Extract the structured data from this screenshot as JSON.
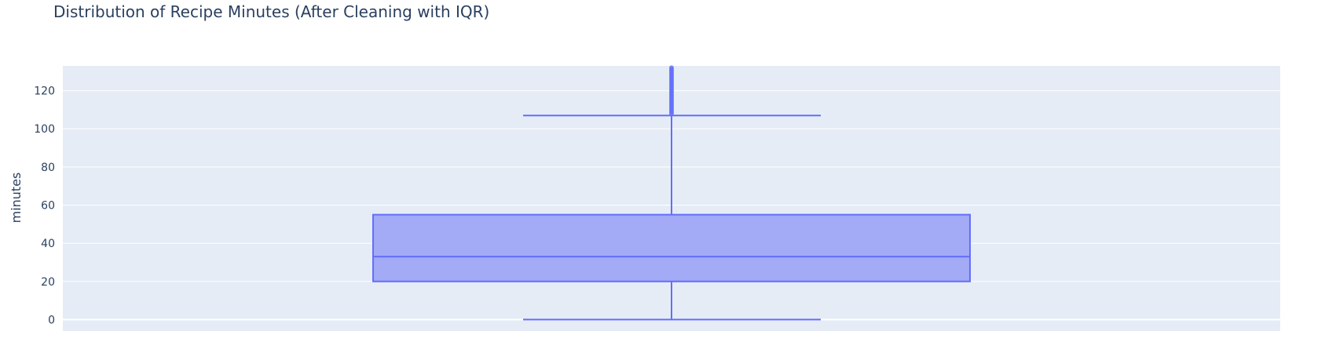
{
  "colors": {
    "plot_background": "#e5ecf6",
    "grid": "#ffffff",
    "text": "#2a3f5f",
    "box_line": "#636efa",
    "box_fill": "#a3aaf6"
  },
  "chart_data": {
    "type": "box",
    "title": "Distribution of Recipe Minutes (After Cleaning with IQR)",
    "xlabel": "",
    "ylabel": "minutes",
    "ylim": [
      -6,
      133
    ],
    "y_ticks": [
      0,
      20,
      40,
      60,
      80,
      100,
      120
    ],
    "grid": true,
    "legend": "none",
    "series": [
      {
        "lower_fence": 0,
        "q1": 20,
        "median": 33,
        "q3": 55,
        "upper_fence": 107,
        "outliers": [
          108,
          109,
          110,
          111,
          112,
          113,
          114,
          115,
          116,
          117,
          118,
          119,
          120,
          121,
          122,
          123,
          124,
          125,
          126,
          127,
          128,
          129,
          130,
          131,
          132
        ]
      }
    ]
  }
}
